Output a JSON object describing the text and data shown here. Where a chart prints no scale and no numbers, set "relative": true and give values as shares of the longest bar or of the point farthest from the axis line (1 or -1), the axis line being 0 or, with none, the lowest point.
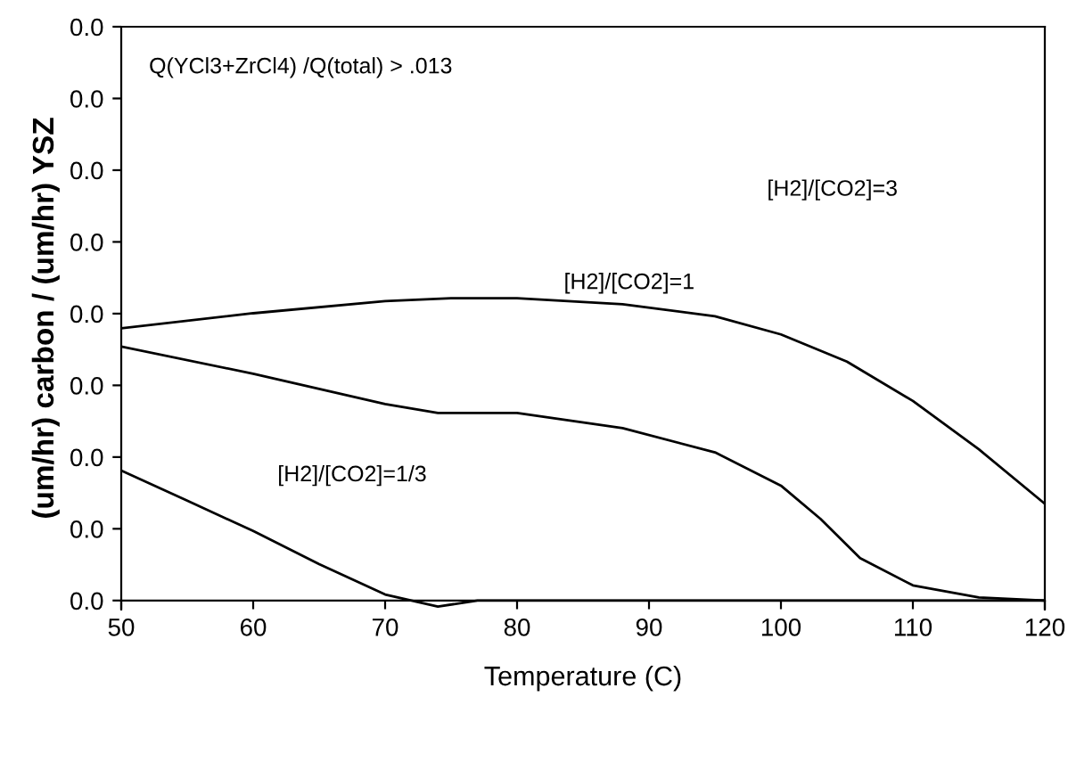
{
  "chart_data": {
    "type": "line",
    "relative": true,
    "xlabel": "Temperature (C)",
    "ylabel": "(um/hr) carbon / (um/hr) YSZ",
    "xlim": [
      50,
      120
    ],
    "xticks": [
      50,
      60,
      70,
      80,
      90,
      100,
      110,
      120
    ],
    "grid": false,
    "marker": "none",
    "line_style": "solid",
    "series": [
      {
        "color": "#000000",
        "x": [
          50,
          60,
          70,
          75,
          80,
          88,
          95,
          100,
          105,
          110,
          115,
          120
        ],
        "values": [
          0.9,
          0.95,
          0.99,
          1,
          1,
          0.98,
          0.94,
          0.88,
          0.79,
          0.66,
          0.5,
          0.32
        ]
      },
      {
        "color": "#000000",
        "x": [
          50,
          60,
          70,
          74,
          80,
          88,
          95,
          100,
          103,
          106,
          110,
          115,
          120
        ],
        "values": [
          0.84,
          0.75,
          0.65,
          0.62,
          0.62,
          0.57,
          0.49,
          0.38,
          0.27,
          0.14,
          0.05,
          0.01,
          0
        ]
      },
      {
        "color": "#000000",
        "x": [
          50,
          55,
          60,
          65,
          70,
          74,
          77,
          80,
          90,
          100,
          120
        ],
        "values": [
          0.43,
          0.33,
          0.23,
          0.12,
          0.02,
          -0.02,
          0,
          0,
          0,
          0,
          0
        ]
      }
    ],
    "annotations": [
      "Q(YCl3+ZrCl4) /Q(total) > .013",
      "[H2]/[CO2]=3",
      "[H2]/[CO2]=1",
      "[H2]/[CO2]=1/3",
      "0.0",
      "0.0",
      "0.0",
      "0.0",
      "0.0",
      "0.0",
      "0.0",
      "0.0",
      "0.0"
    ]
  }
}
